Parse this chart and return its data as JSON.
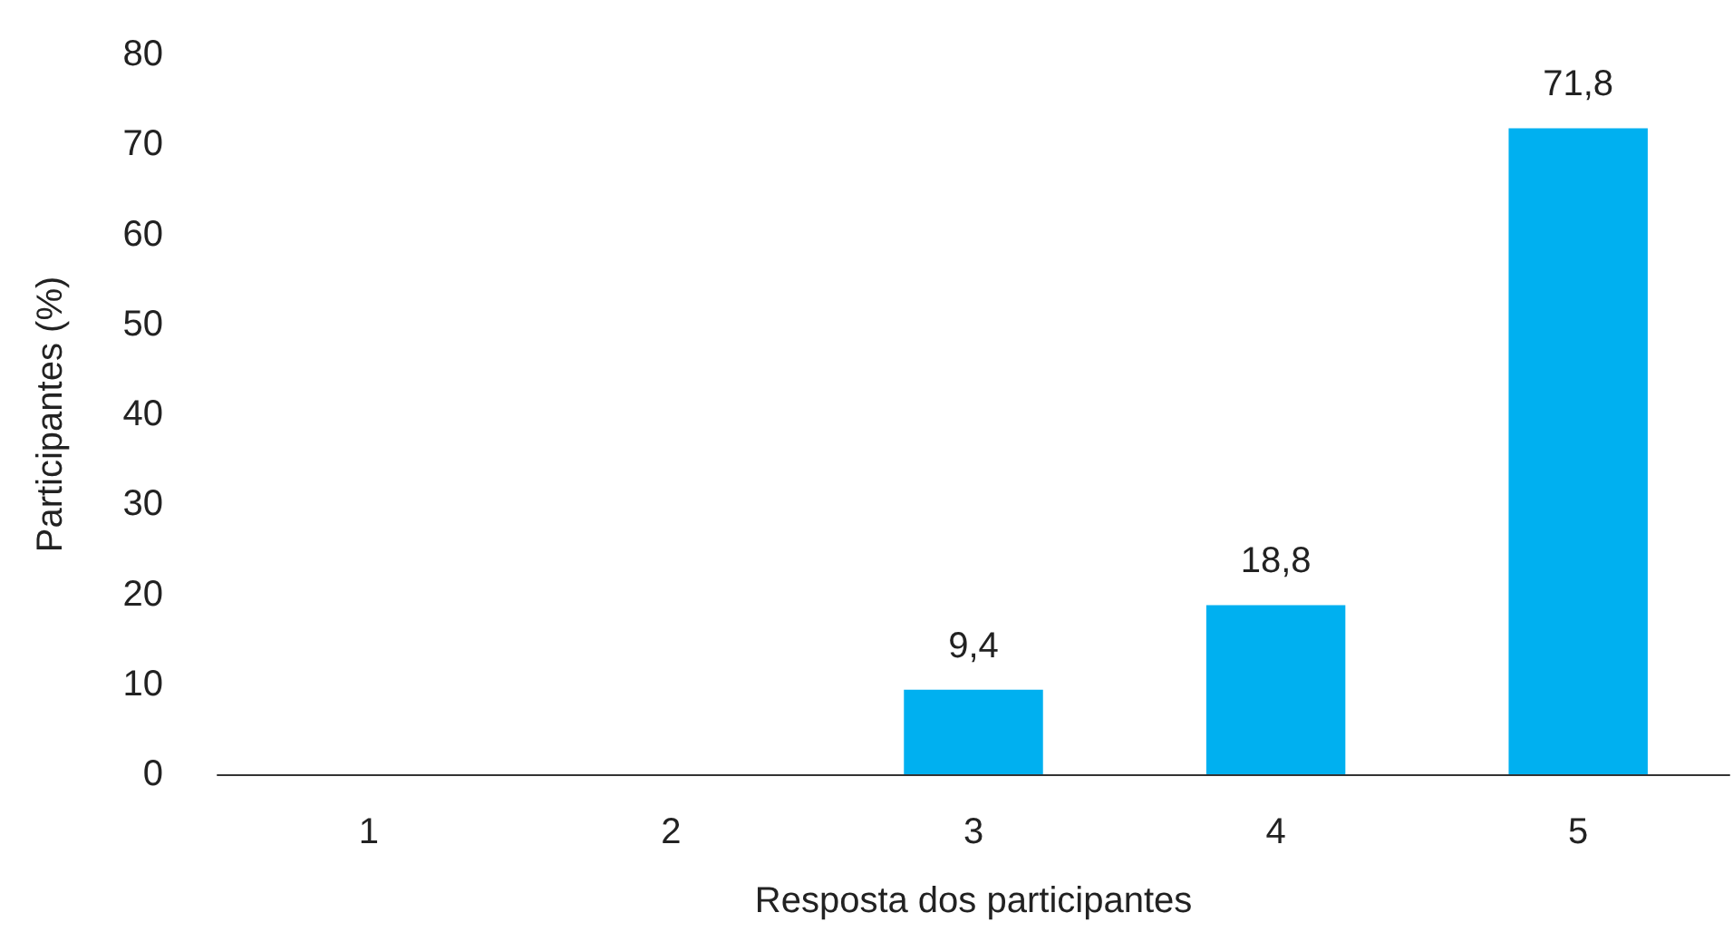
{
  "chart_data": {
    "type": "bar",
    "xlabel": "Resposta dos participantes",
    "ylabel": "Participantes (%)",
    "categories": [
      "1",
      "2",
      "3",
      "4",
      "5"
    ],
    "values": [
      0,
      0,
      9.4,
      18.8,
      71.8
    ],
    "value_labels": [
      null,
      null,
      "9,4",
      "18,8",
      "71,8"
    ],
    "color": "#00b0f0",
    "ylim": [
      0,
      80
    ],
    "yticks": [
      0,
      10,
      20,
      30,
      40,
      50,
      60,
      70,
      80
    ],
    "grid": false
  }
}
